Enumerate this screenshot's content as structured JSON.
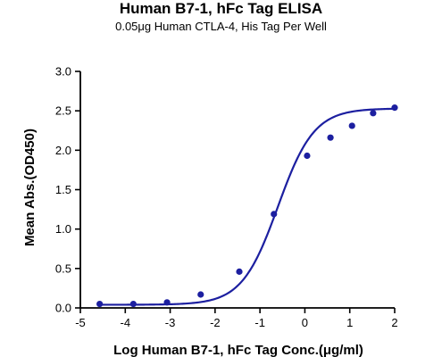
{
  "chart_data": {
    "type": "scatter",
    "title": "Human B7-1, hFc Tag ELISA",
    "subtitle": "0.05μg Human CTLA-4, His Tag Per Well",
    "xlabel": "Log Human B7-1, hFc Tag Conc.(μg/ml)",
    "ylabel": "Mean Abs.(OD450)",
    "xlim": [
      -5,
      2
    ],
    "ylim": [
      0,
      3.0
    ],
    "x_ticks": [
      "-5",
      "-4",
      "-3",
      "-2",
      "-1",
      "0",
      "1",
      "2"
    ],
    "y_ticks": [
      "0.0",
      "0.5",
      "1.0",
      "1.5",
      "2.0",
      "2.5",
      "3.0"
    ],
    "grid": false,
    "series": [
      {
        "x": [
          -4.57,
          -3.82,
          -3.07,
          -2.32,
          -1.46,
          -0.69,
          0.05,
          0.57,
          1.05,
          1.52,
          2.0
        ],
        "y": [
          0.05,
          0.05,
          0.07,
          0.17,
          0.46,
          1.19,
          1.93,
          2.16,
          2.31,
          2.47,
          2.54
        ],
        "fit": {
          "bottom": 0.04,
          "top": 2.53,
          "logEC50": -0.6,
          "hill": 1.08
        }
      }
    ],
    "colors": {
      "series": "#1c1fa0",
      "axis": "#000000"
    }
  }
}
